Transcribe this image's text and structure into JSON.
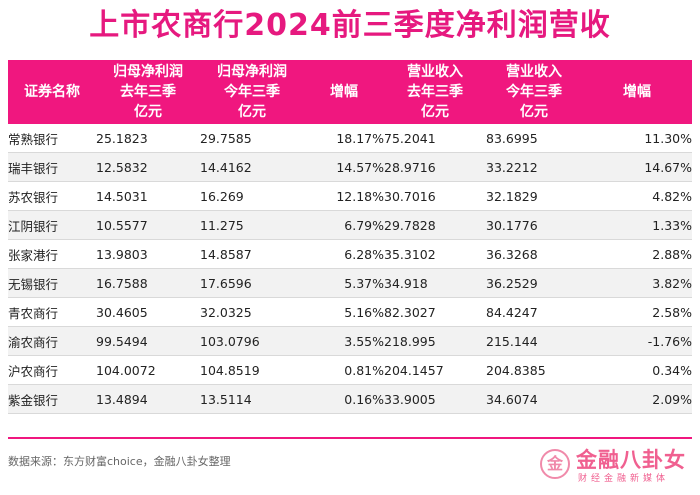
{
  "title": "上市农商行2024前三季度净利润营收",
  "table": {
    "headers": [
      [
        "证券名称"
      ],
      [
        "归母净利润",
        "去年三季",
        "亿元"
      ],
      [
        "归母净利润",
        "今年三季",
        "亿元"
      ],
      [
        "增幅"
      ],
      [
        "营业收入",
        "去年三季",
        "亿元"
      ],
      [
        "营业收入",
        "今年三季",
        "亿元"
      ],
      [
        "增幅"
      ]
    ],
    "rows": [
      [
        "常熟银行",
        "25.1823",
        "29.7585",
        "18.17%",
        "75.2041",
        "83.6995",
        "11.30%"
      ],
      [
        "瑞丰银行",
        "12.5832",
        "14.4162",
        "14.57%",
        "28.9716",
        "33.2212",
        "14.67%"
      ],
      [
        "苏农银行",
        "14.5031",
        "16.269",
        "12.18%",
        "30.7016",
        "32.1829",
        "4.82%"
      ],
      [
        "江阴银行",
        "10.5577",
        "11.275",
        "6.79%",
        "29.7828",
        "30.1776",
        "1.33%"
      ],
      [
        "张家港行",
        "13.9803",
        "14.8587",
        "6.28%",
        "35.3102",
        "36.3268",
        "2.88%"
      ],
      [
        "无锡银行",
        "16.7588",
        "17.6596",
        "5.37%",
        "34.918",
        "36.2529",
        "3.82%"
      ],
      [
        "青农商行",
        "30.4605",
        "32.0325",
        "5.16%",
        "82.3027",
        "84.4247",
        "2.58%"
      ],
      [
        "渝农商行",
        "99.5494",
        "103.0796",
        "3.55%",
        "218.995",
        "215.144",
        "-1.76%"
      ],
      [
        "沪农商行",
        "104.0072",
        "104.8519",
        "0.81%",
        "204.1457",
        "204.8385",
        "0.34%"
      ],
      [
        "紫金银行",
        "13.4894",
        "13.5114",
        "0.16%",
        "33.9005",
        "34.6074",
        "2.09%"
      ]
    ]
  },
  "source": "数据来源：东方财富choice，金融八卦女整理",
  "logo": {
    "mark": "金",
    "name": "金融八卦女",
    "tagline": "财经金融新媒体"
  },
  "colors": {
    "accent": "#f0177f",
    "title": "#e6197f",
    "stripe": "#f2f2f2"
  }
}
